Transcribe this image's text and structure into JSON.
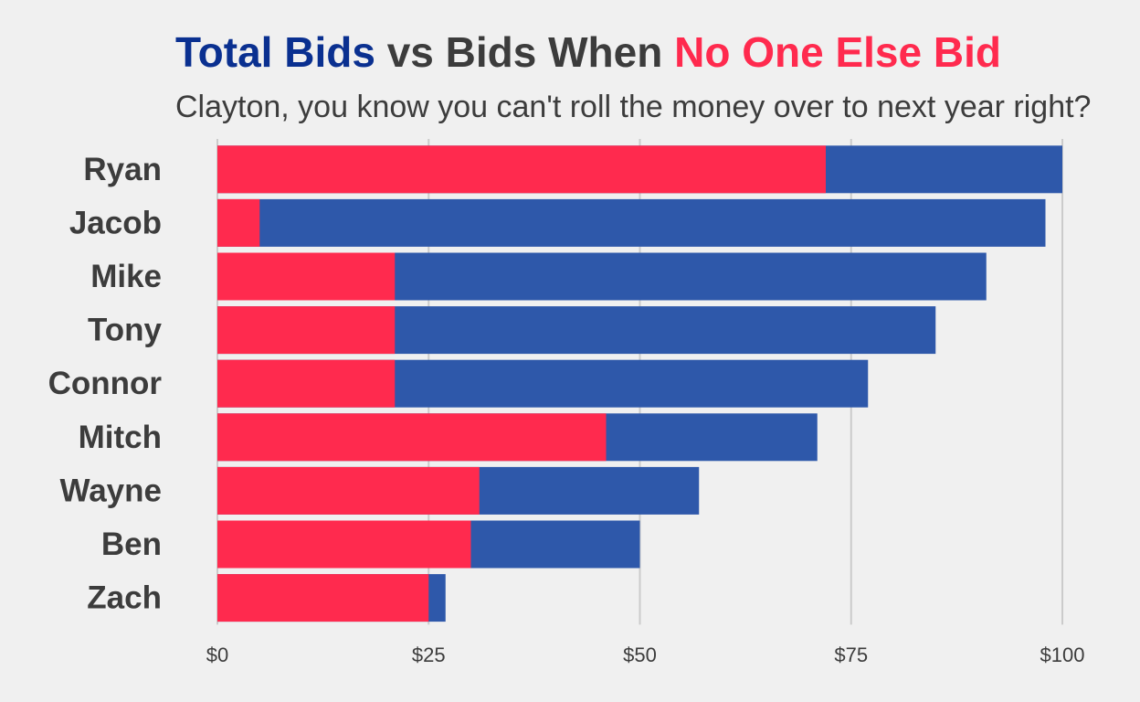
{
  "chart_data": {
    "type": "bar",
    "orientation": "horizontal",
    "title_parts": [
      {
        "text": "Total Bids",
        "color": "#0a3090"
      },
      {
        "text": " vs Bids When ",
        "color": "#3c3c3c"
      },
      {
        "text": "No One Else Bid",
        "color": "#ff2a4e"
      }
    ],
    "subtitle": "Clayton, you know you can't roll the money over to next year right?",
    "categories": [
      "Ryan",
      "Jacob",
      "Mike",
      "Tony",
      "Connor",
      "Mitch",
      "Wayne",
      "Ben",
      "Zach"
    ],
    "series": [
      {
        "key": "total",
        "color": "#2e58aa",
        "values": [
          100,
          98,
          91,
          85,
          77,
          71,
          57,
          50,
          27
        ]
      },
      {
        "key": "no_one_else",
        "color": "#ff2a4e",
        "values": [
          72,
          5,
          21,
          21,
          21,
          46,
          31,
          30,
          25
        ]
      }
    ],
    "x_ticks": [
      "$0",
      "$25",
      "$50",
      "$75",
      "$100"
    ],
    "x_tick_values": [
      0,
      25,
      50,
      75,
      100
    ],
    "xlim": [
      0,
      100
    ],
    "grid": "vertical",
    "legend": "none"
  }
}
